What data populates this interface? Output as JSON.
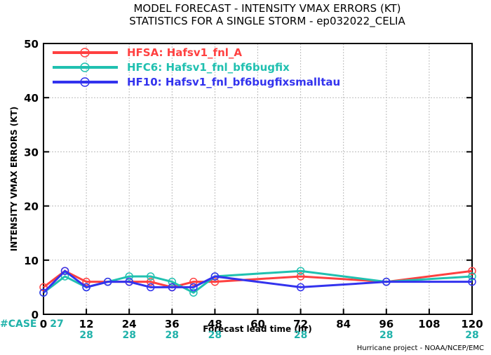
{
  "title_line1": "MODEL FORECAST - INTENSITY VMAX ERRORS (KT)",
  "title_line2": "STATISTICS FOR A SINGLE STORM - ep032022_CELIA",
  "credit": "Hurricane project - NOAA/NCEP/EMC",
  "cases_label": "#CASE",
  "cases": [
    27,
    28,
    28,
    28,
    28,
    28,
    28,
    28
  ],
  "case_hours": [
    0,
    12,
    24,
    36,
    48,
    72,
    96,
    120
  ],
  "chart_data": {
    "type": "line",
    "xlabel": "Forecast lead time (hr)",
    "ylabel": "INTENSITY VMAX ERRORS (KT)",
    "xlim": [
      0,
      120
    ],
    "ylim": [
      0,
      50
    ],
    "xticks": [
      0,
      12,
      24,
      36,
      48,
      60,
      72,
      84,
      96,
      108,
      120
    ],
    "yticks": [
      0,
      10,
      20,
      30,
      40,
      50
    ],
    "legend_position": "top-left",
    "series": [
      {
        "name": "HFSA: Hafsv1_fnl_A",
        "color": "#ff4040",
        "x": [
          0,
          6,
          12,
          18,
          24,
          30,
          36,
          42,
          48,
          72,
          96,
          120
        ],
        "values": [
          5,
          8,
          6,
          6,
          6,
          6,
          5,
          6,
          6,
          7,
          6,
          8
        ]
      },
      {
        "name": "HFC6: Hafsv1_fnl_bf6bugfix",
        "color": "#20c0b0",
        "x": [
          0,
          6,
          12,
          18,
          24,
          30,
          36,
          42,
          48,
          72,
          96,
          120
        ],
        "values": [
          4,
          7,
          5,
          6,
          7,
          7,
          6,
          4,
          7,
          8,
          6,
          7
        ]
      },
      {
        "name": "HF10: Hafsv1_fnl_bf6bugfixsmalltau",
        "color": "#3333ee",
        "x": [
          0,
          6,
          12,
          18,
          24,
          30,
          36,
          42,
          48,
          72,
          96,
          120
        ],
        "values": [
          4,
          8,
          5,
          6,
          6,
          5,
          5,
          5,
          7,
          5,
          6,
          6
        ]
      }
    ]
  }
}
